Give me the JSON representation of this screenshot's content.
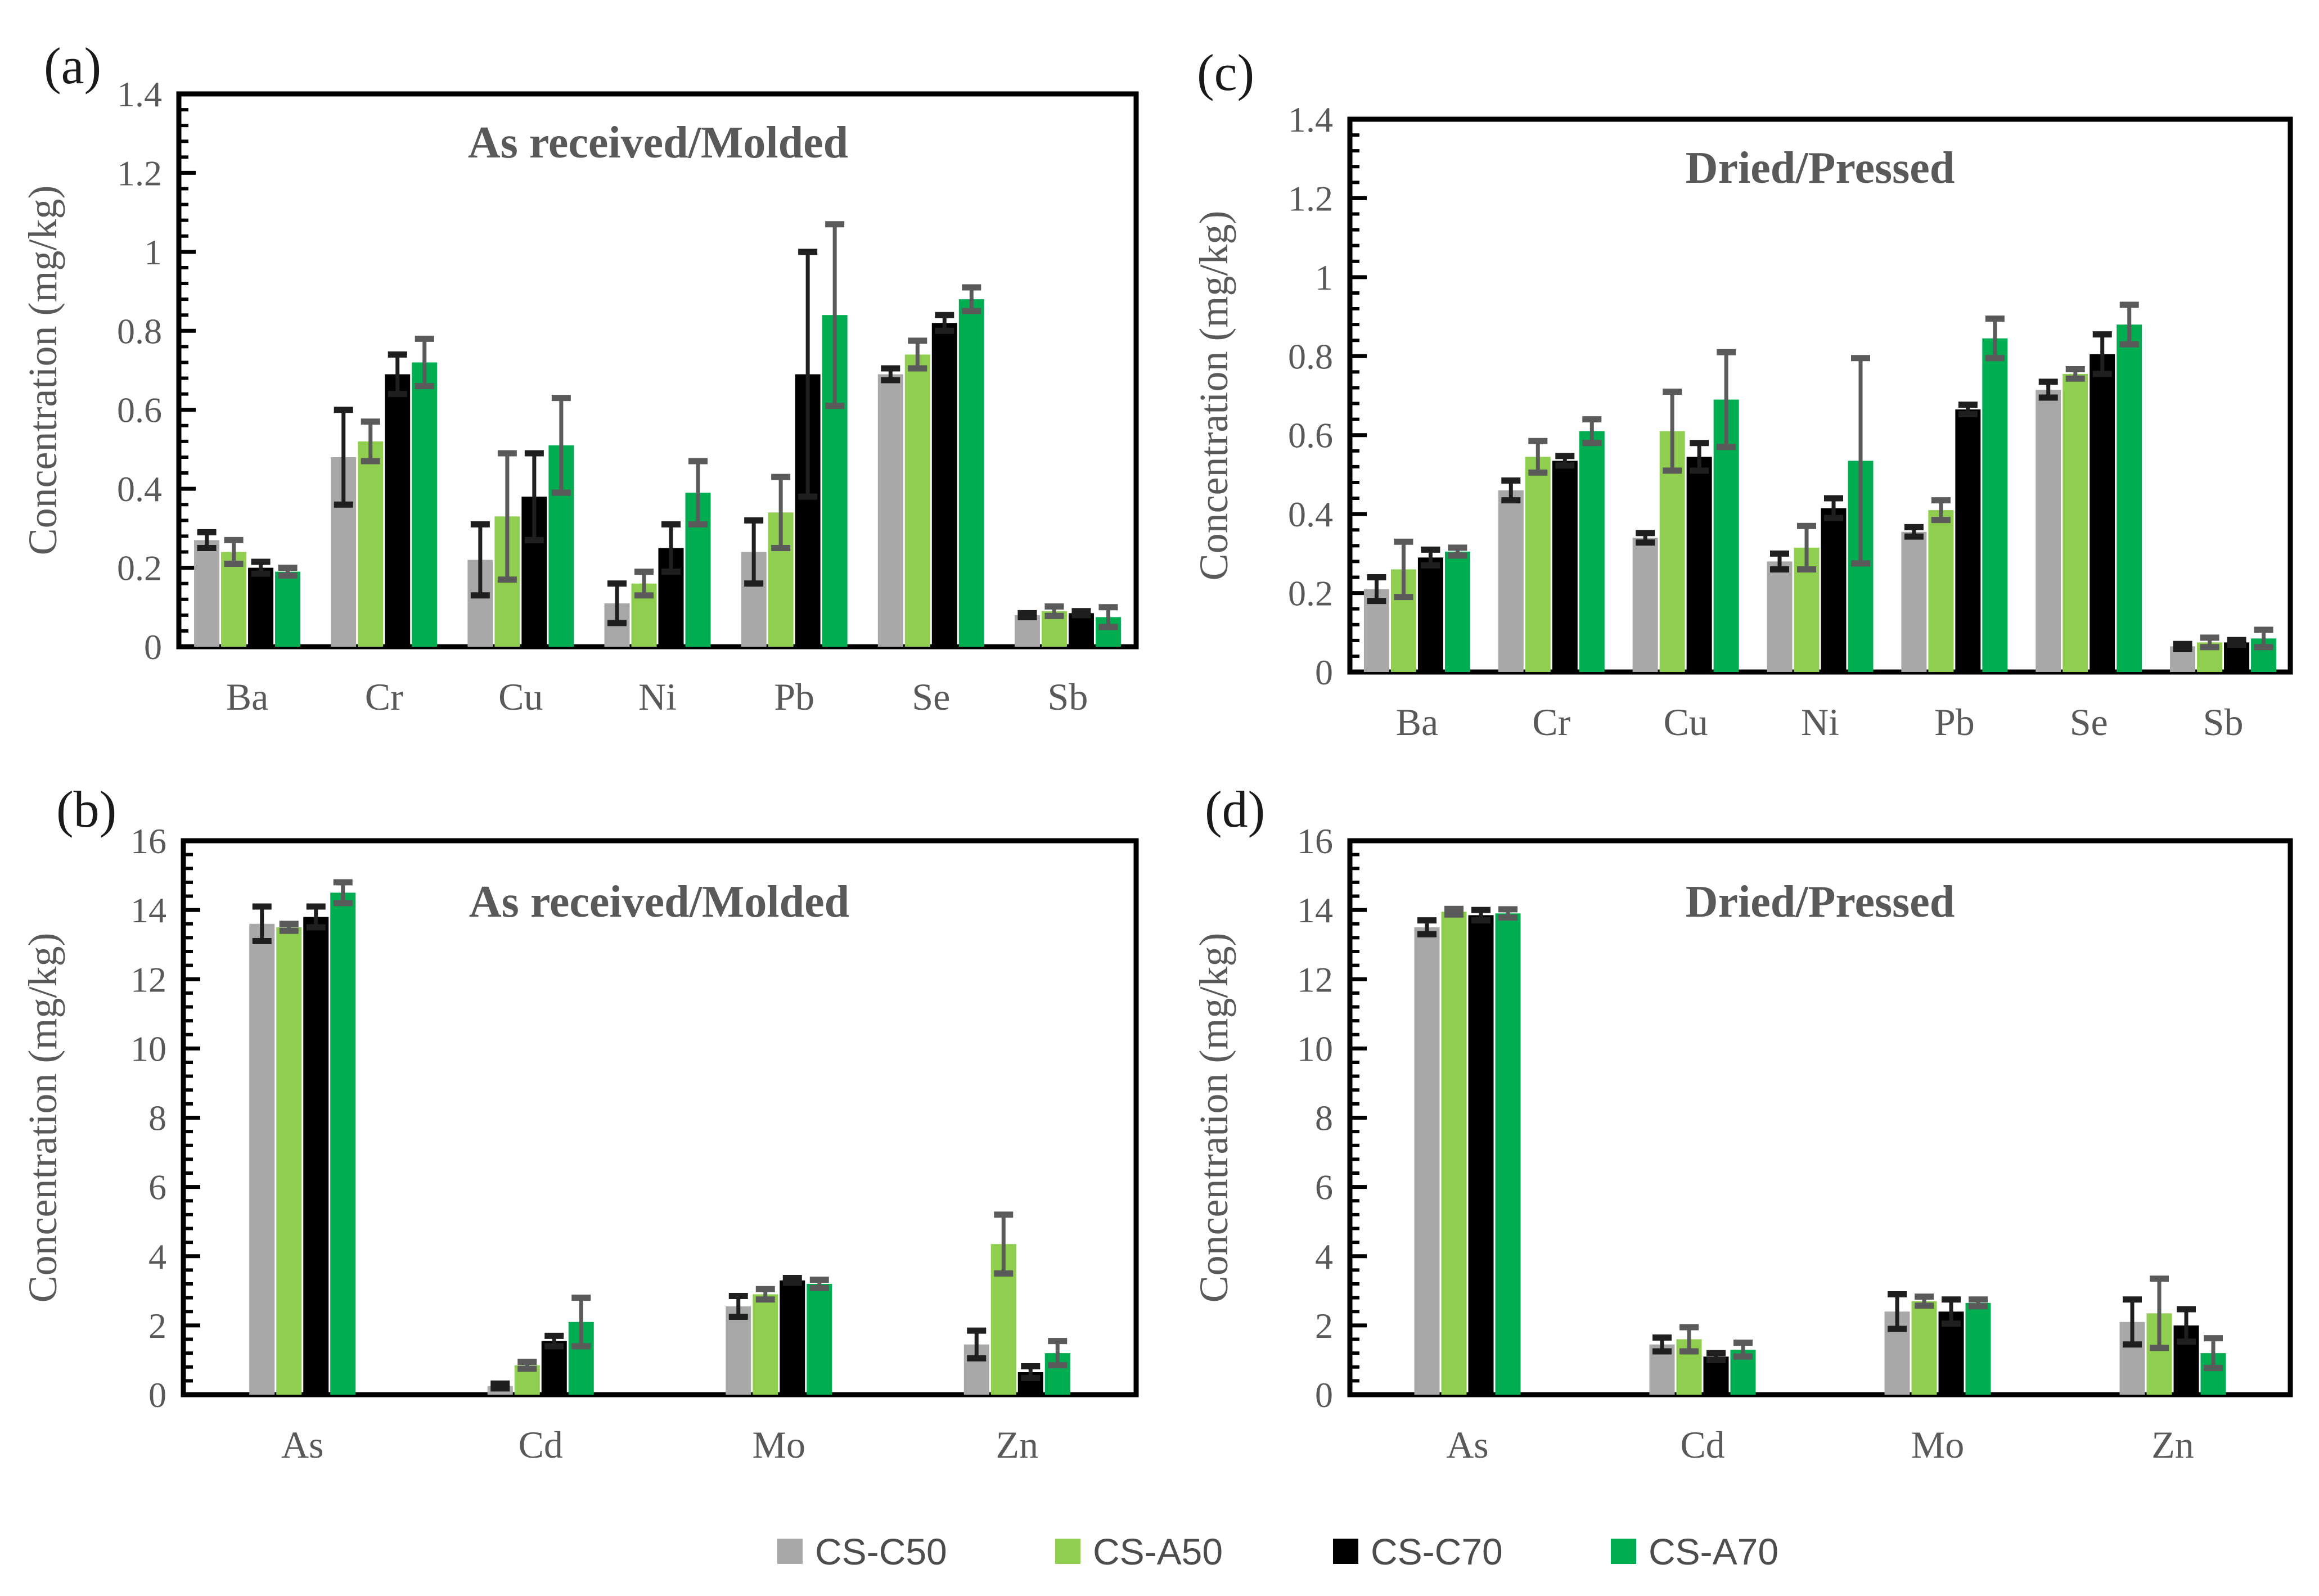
{
  "figure": {
    "ylabel": "Concentration (mg/kg)",
    "background": "#ffffff",
    "axis_color": "#000000",
    "text_color": "#595959"
  },
  "legend": {
    "items": [
      {
        "label": "CS-C50",
        "color": "#A8A8A8",
        "error_color": "#1f1f1f"
      },
      {
        "label": "CS-A50",
        "color": "#8FCE4E",
        "error_color": "#5a5a5a"
      },
      {
        "label": "CS-C70",
        "color": "#000000",
        "error_color": "#1f1f1f"
      },
      {
        "label": "CS-A70",
        "color": "#00AD50",
        "error_color": "#5a5a5a"
      }
    ]
  },
  "chart_data": [
    {
      "id": "a",
      "panel_label": "(a)",
      "type": "bar",
      "title": "As received/Molded",
      "ylabel": "Concentration (mg/kg)",
      "ylim": [
        0,
        1.4
      ],
      "ytick_step": 0.2,
      "yminor_step": 0.04,
      "grid": false,
      "legend_position": "bottom-shared",
      "categories": [
        "Ba",
        "Cr",
        "Cu",
        "Ni",
        "Pb",
        "Se",
        "Sb"
      ],
      "series": [
        {
          "name": "CS-C50",
          "values": [
            0.27,
            0.48,
            0.22,
            0.11,
            0.24,
            0.69,
            0.08
          ],
          "errors": [
            0.02,
            0.12,
            0.09,
            0.05,
            0.08,
            0.015,
            0.005
          ]
        },
        {
          "name": "CS-A50",
          "values": [
            0.24,
            0.52,
            0.33,
            0.16,
            0.34,
            0.74,
            0.09
          ],
          "errors": [
            0.03,
            0.05,
            0.16,
            0.03,
            0.09,
            0.035,
            0.012
          ]
        },
        {
          "name": "CS-C70",
          "values": [
            0.2,
            0.69,
            0.38,
            0.25,
            0.69,
            0.82,
            0.085
          ],
          "errors": [
            0.015,
            0.05,
            0.11,
            0.06,
            0.31,
            0.02,
            0.005
          ]
        },
        {
          "name": "CS-A70",
          "values": [
            0.19,
            0.72,
            0.51,
            0.39,
            0.84,
            0.88,
            0.075
          ],
          "errors": [
            0.01,
            0.06,
            0.12,
            0.08,
            0.23,
            0.03,
            0.025
          ]
        }
      ]
    },
    {
      "id": "b",
      "panel_label": "(b)",
      "type": "bar",
      "title": "As received/Molded",
      "ylabel": "Concentration (mg/kg)",
      "ylim": [
        0,
        16
      ],
      "ytick_step": 2,
      "yminor_step": 0.4,
      "grid": false,
      "legend_position": "bottom-shared",
      "categories": [
        "As",
        "Cd",
        "Mo",
        "Zn"
      ],
      "series": [
        {
          "name": "CS-C50",
          "values": [
            13.6,
            0.25,
            2.55,
            1.45
          ],
          "errors": [
            0.5,
            0.07,
            0.3,
            0.4
          ]
        },
        {
          "name": "CS-A50",
          "values": [
            13.5,
            0.85,
            2.9,
            4.35
          ],
          "errors": [
            0.1,
            0.1,
            0.15,
            0.85
          ]
        },
        {
          "name": "CS-C70",
          "values": [
            13.8,
            1.55,
            3.3,
            0.65
          ],
          "errors": [
            0.3,
            0.15,
            0.07,
            0.17
          ]
        },
        {
          "name": "CS-A70",
          "values": [
            14.5,
            2.1,
            3.2,
            1.2
          ],
          "errors": [
            0.3,
            0.7,
            0.12,
            0.35
          ]
        }
      ]
    },
    {
      "id": "c",
      "panel_label": "(c)",
      "type": "bar",
      "title": "Dried/Pressed",
      "ylabel": "Concentration (mg/kg)",
      "ylim": [
        0,
        1.4
      ],
      "ytick_step": 0.2,
      "yminor_step": 0.04,
      "grid": false,
      "legend_position": "bottom-shared",
      "categories": [
        "Ba",
        "Cr",
        "Cu",
        "Ni",
        "Pb",
        "Se",
        "Sb"
      ],
      "series": [
        {
          "name": "CS-C50",
          "values": [
            0.21,
            0.46,
            0.34,
            0.28,
            0.355,
            0.715,
            0.065
          ],
          "errors": [
            0.03,
            0.025,
            0.012,
            0.02,
            0.012,
            0.02,
            0.006
          ]
        },
        {
          "name": "CS-A50",
          "values": [
            0.26,
            0.545,
            0.61,
            0.315,
            0.41,
            0.755,
            0.075
          ],
          "errors": [
            0.07,
            0.04,
            0.1,
            0.055,
            0.025,
            0.012,
            0.012
          ]
        },
        {
          "name": "CS-C70",
          "values": [
            0.29,
            0.535,
            0.545,
            0.415,
            0.665,
            0.805,
            0.075
          ],
          "errors": [
            0.02,
            0.012,
            0.035,
            0.025,
            0.012,
            0.05,
            0.006
          ]
        },
        {
          "name": "CS-A70",
          "values": [
            0.305,
            0.61,
            0.69,
            0.535,
            0.845,
            0.88,
            0.085
          ],
          "errors": [
            0.01,
            0.03,
            0.12,
            0.26,
            0.05,
            0.05,
            0.022
          ]
        }
      ]
    },
    {
      "id": "d",
      "panel_label": "(d)",
      "type": "bar",
      "title": "Dried/Pressed",
      "ylabel": "Concentration (mg/kg)",
      "ylim": [
        0,
        16
      ],
      "ytick_step": 2,
      "yminor_step": 0.4,
      "grid": false,
      "legend_position": "bottom-shared",
      "categories": [
        "As",
        "Cd",
        "Mo",
        "Zn"
      ],
      "series": [
        {
          "name": "CS-C50",
          "values": [
            13.5,
            1.45,
            2.4,
            2.1
          ],
          "errors": [
            0.2,
            0.2,
            0.5,
            0.65
          ]
        },
        {
          "name": "CS-A50",
          "values": [
            13.95,
            1.6,
            2.7,
            2.35
          ],
          "errors": [
            0.08,
            0.35,
            0.13,
            1.0
          ]
        },
        {
          "name": "CS-C70",
          "values": [
            13.85,
            1.1,
            2.4,
            2.0
          ],
          "errors": [
            0.15,
            0.1,
            0.35,
            0.47
          ]
        },
        {
          "name": "CS-A70",
          "values": [
            13.9,
            1.3,
            2.65,
            1.2
          ],
          "errors": [
            0.12,
            0.2,
            0.1,
            0.43
          ]
        }
      ]
    }
  ]
}
